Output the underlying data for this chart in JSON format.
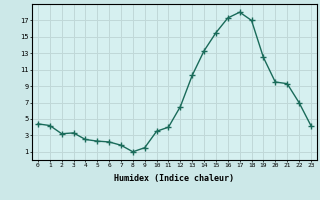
{
  "x": [
    0,
    1,
    2,
    3,
    4,
    5,
    6,
    7,
    8,
    9,
    10,
    11,
    12,
    13,
    14,
    15,
    16,
    17,
    18,
    19,
    20,
    21,
    22,
    23
  ],
  "y": [
    4.4,
    4.2,
    3.2,
    3.3,
    2.5,
    2.3,
    2.2,
    1.8,
    1.0,
    1.5,
    3.5,
    4.0,
    6.5,
    10.3,
    13.3,
    15.5,
    17.3,
    18.0,
    17.0,
    12.5,
    9.5,
    9.3,
    7.0,
    4.2
  ],
  "xlabel": "Humidex (Indice chaleur)",
  "xlim": [
    -0.5,
    23.5
  ],
  "ylim": [
    0,
    19
  ],
  "yticks": [
    1,
    3,
    5,
    7,
    9,
    11,
    13,
    15,
    17
  ],
  "xticks": [
    0,
    1,
    2,
    3,
    4,
    5,
    6,
    7,
    8,
    9,
    10,
    11,
    12,
    13,
    14,
    15,
    16,
    17,
    18,
    19,
    20,
    21,
    22,
    23
  ],
  "line_color": "#1a6b5a",
  "marker": "+",
  "bg_color": "#d6f0f0",
  "grid_color": "#c0d8d8",
  "fig_bg": "#cce8e8"
}
